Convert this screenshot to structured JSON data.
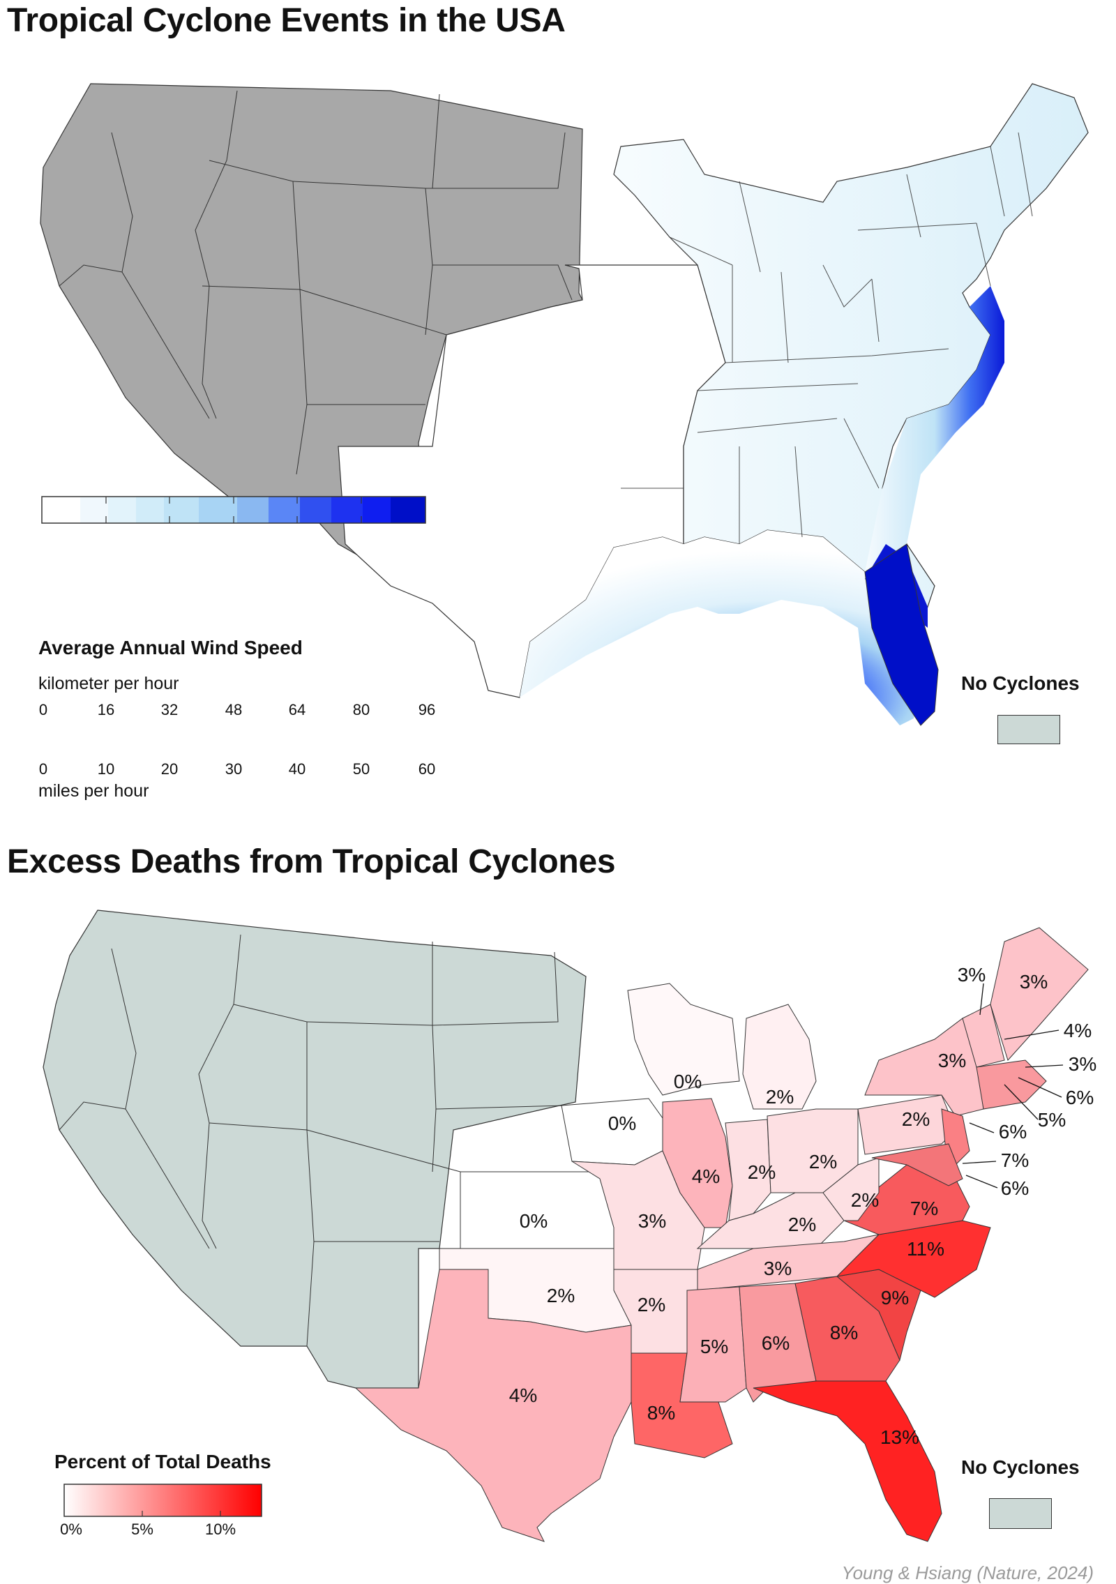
{
  "top_map": {
    "title": "Tropical Cyclone Events in the USA",
    "legend": {
      "title": "Average Annual Wind Speed",
      "unit_top": "kilometer per hour",
      "ticks_kmh": [
        "0",
        "16",
        "32",
        "48",
        "64",
        "80",
        "96"
      ],
      "ticks_mph": [
        "0",
        "10",
        "20",
        "30",
        "40",
        "50",
        "60"
      ],
      "unit_bottom": "miles per hour",
      "colors": [
        "#ffffff",
        "#f0f8fd",
        "#e2f3fb",
        "#d1ecf9",
        "#bfe3f6",
        "#8ab8f1",
        "#5a86f6",
        "#3050f0",
        "#0f1ef0",
        "#000fc8"
      ]
    },
    "no_cyclones_label": "No Cyclones",
    "no_cyclones_color": "#a8a8a8"
  },
  "bottom_map": {
    "title": "Excess Deaths from Tropical Cyclones",
    "legend": {
      "title": "Percent of Total Deaths",
      "ticks": [
        "0%",
        "5%",
        "10%"
      ],
      "gradient": [
        "#ffffff",
        "#ff0000"
      ]
    },
    "no_cyclones_label": "No Cyclones",
    "no_cyclones_color": "#ccd9d6",
    "state_values": [
      {
        "state": "ME",
        "label": "3%"
      },
      {
        "state": "VT",
        "label": "3%"
      },
      {
        "state": "NH",
        "label": "4%"
      },
      {
        "state": "MA",
        "label": "3%"
      },
      {
        "state": "RI",
        "label": "6%"
      },
      {
        "state": "CT",
        "label": "5%"
      },
      {
        "state": "NY",
        "label": "3%"
      },
      {
        "state": "NJ",
        "label": "6%"
      },
      {
        "state": "DE",
        "label": "7%"
      },
      {
        "state": "MD",
        "label": "6%"
      },
      {
        "state": "PA",
        "label": "2%"
      },
      {
        "state": "WI",
        "label": "0%"
      },
      {
        "state": "MI",
        "label": "2%"
      },
      {
        "state": "IA",
        "label": "0%"
      },
      {
        "state": "IL",
        "label": "4%"
      },
      {
        "state": "IN",
        "label": "2%"
      },
      {
        "state": "OH",
        "label": "2%"
      },
      {
        "state": "WV",
        "label": "2%"
      },
      {
        "state": "VA",
        "label": "7%"
      },
      {
        "state": "KY",
        "label": "2%"
      },
      {
        "state": "KS",
        "label": "0%"
      },
      {
        "state": "MO",
        "label": "3%"
      },
      {
        "state": "TN",
        "label": "3%"
      },
      {
        "state": "NC",
        "label": "11%"
      },
      {
        "state": "OK",
        "label": "2%"
      },
      {
        "state": "AR",
        "label": "2%"
      },
      {
        "state": "SC",
        "label": "9%"
      },
      {
        "state": "MS",
        "label": "5%"
      },
      {
        "state": "AL",
        "label": "6%"
      },
      {
        "state": "GA",
        "label": "8%"
      },
      {
        "state": "TX",
        "label": "4%"
      },
      {
        "state": "LA",
        "label": "8%"
      },
      {
        "state": "FL",
        "label": "13%"
      }
    ]
  },
  "credit": "Young & Hsiang (Nature, 2024)"
}
